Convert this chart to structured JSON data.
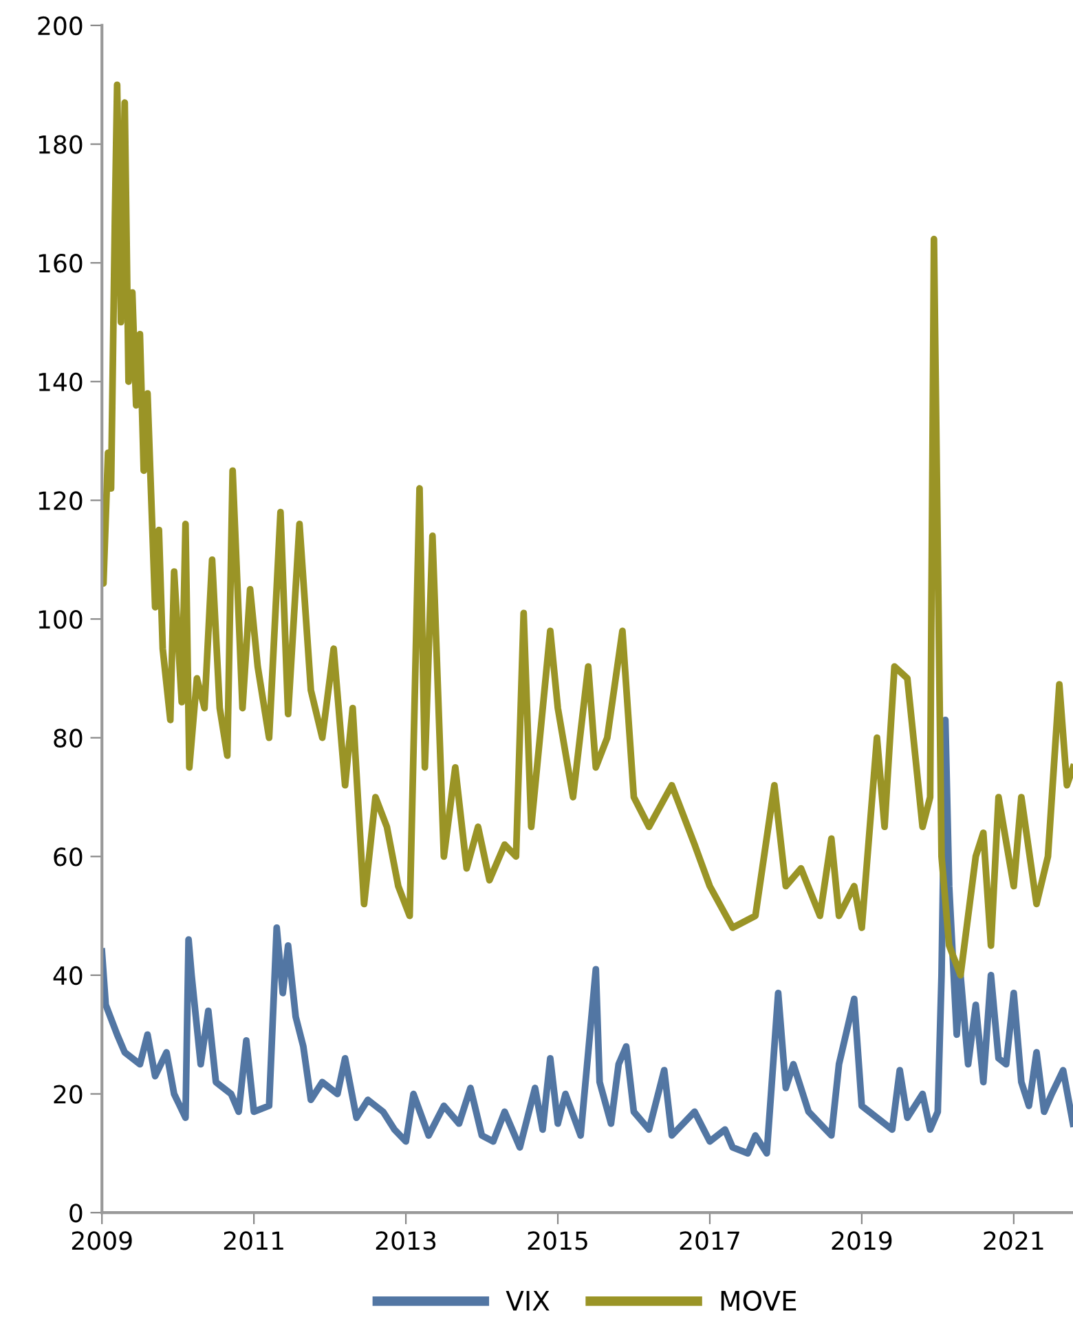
{
  "chart_data": {
    "type": "line",
    "xlim": [
      2009,
      2021.78
    ],
    "xticks": [
      2009,
      2011,
      2013,
      2015,
      2017,
      2019,
      2021
    ],
    "ylim": [
      0,
      200
    ],
    "yticks": [
      0,
      20,
      40,
      60,
      80,
      100,
      120,
      140,
      160,
      180,
      200
    ],
    "grid": false,
    "legend": "bottom",
    "marker": "none",
    "line_style": "solid",
    "series": [
      {
        "name": "VIX",
        "color": "#5276a3",
        "x": [
          2009.0,
          2009.05,
          2009.2,
          2009.3,
          2009.5,
          2009.6,
          2009.7,
          2009.85,
          2009.95,
          2010.1,
          2010.14,
          2010.18,
          2010.3,
          2010.4,
          2010.5,
          2010.7,
          2010.8,
          2010.9,
          2011.0,
          2011.2,
          2011.3,
          2011.38,
          2011.45,
          2011.55,
          2011.65,
          2011.75,
          2011.9,
          2012.1,
          2012.2,
          2012.35,
          2012.5,
          2012.7,
          2012.85,
          2013.0,
          2013.1,
          2013.3,
          2013.5,
          2013.7,
          2013.85,
          2014.0,
          2014.15,
          2014.3,
          2014.5,
          2014.7,
          2014.8,
          2014.9,
          2015.0,
          2015.1,
          2015.3,
          2015.5,
          2015.55,
          2015.7,
          2015.8,
          2015.9,
          2016.0,
          2016.2,
          2016.4,
          2016.5,
          2016.8,
          2017.0,
          2017.2,
          2017.3,
          2017.5,
          2017.6,
          2017.75,
          2017.9,
          2018.0,
          2018.1,
          2018.3,
          2018.6,
          2018.7,
          2018.9,
          2019.0,
          2019.2,
          2019.4,
          2019.5,
          2019.6,
          2019.8,
          2019.9,
          2020.0,
          2020.05,
          2020.1,
          2020.15,
          2020.25,
          2020.3,
          2020.4,
          2020.5,
          2020.6,
          2020.7,
          2020.8,
          2020.9,
          2021.0,
          2021.1,
          2021.2,
          2021.3,
          2021.4,
          2021.5,
          2021.65,
          2021.78
        ],
        "values": [
          44,
          35,
          30,
          27,
          25,
          30,
          23,
          27,
          20,
          16,
          46,
          40,
          25,
          34,
          22,
          20,
          17,
          29,
          17,
          18,
          48,
          37,
          45,
          33,
          28,
          19,
          22,
          20,
          26,
          16,
          19,
          17,
          14,
          12,
          20,
          13,
          18,
          15,
          21,
          13,
          12,
          17,
          11,
          21,
          14,
          26,
          15,
          20,
          13,
          41,
          22,
          15,
          25,
          28,
          17,
          14,
          24,
          13,
          17,
          12,
          14,
          11,
          10,
          13,
          10,
          37,
          21,
          25,
          17,
          13,
          25,
          36,
          18,
          16,
          14,
          24,
          16,
          20,
          14,
          17,
          40,
          83,
          55,
          30,
          40,
          25,
          35,
          22,
          40,
          26,
          25,
          37,
          22,
          18,
          27,
          17,
          20,
          24,
          15
        ]
      },
      {
        "name": "MOVE",
        "color": "#9a9426",
        "x": [
          2009.0,
          2009.02,
          2009.08,
          2009.12,
          2009.17,
          2009.2,
          2009.25,
          2009.3,
          2009.35,
          2009.4,
          2009.45,
          2009.5,
          2009.55,
          2009.6,
          2009.7,
          2009.75,
          2009.8,
          2009.9,
          2009.95,
          2010.05,
          2010.1,
          2010.15,
          2010.25,
          2010.35,
          2010.45,
          2010.55,
          2010.65,
          2010.72,
          2010.85,
          2010.95,
          2011.05,
          2011.2,
          2011.35,
          2011.45,
          2011.6,
          2011.75,
          2011.9,
          2012.05,
          2012.2,
          2012.3,
          2012.45,
          2012.6,
          2012.75,
          2012.9,
          2013.05,
          2013.18,
          2013.25,
          2013.35,
          2013.5,
          2013.65,
          2013.8,
          2013.95,
          2014.1,
          2014.3,
          2014.45,
          2014.55,
          2014.65,
          2014.9,
          2015.0,
          2015.2,
          2015.4,
          2015.5,
          2015.65,
          2015.85,
          2016.0,
          2016.2,
          2016.5,
          2016.8,
          2017.0,
          2017.3,
          2017.6,
          2017.85,
          2018.0,
          2018.2,
          2018.45,
          2018.6,
          2018.7,
          2018.9,
          2019.0,
          2019.2,
          2019.3,
          2019.43,
          2019.6,
          2019.8,
          2019.9,
          2019.95,
          2020.05,
          2020.15,
          2020.3,
          2020.5,
          2020.6,
          2020.7,
          2020.8,
          2021.0,
          2021.1,
          2021.3,
          2021.45,
          2021.6,
          2021.7,
          2021.78
        ],
        "values": [
          120,
          106,
          128,
          122,
          167,
          190,
          150,
          187,
          140,
          155,
          136,
          148,
          125,
          138,
          102,
          115,
          95,
          83,
          108,
          86,
          116,
          75,
          90,
          85,
          110,
          85,
          77,
          125,
          85,
          105,
          92,
          80,
          118,
          84,
          116,
          88,
          80,
          95,
          72,
          85,
          52,
          70,
          65,
          55,
          50,
          122,
          75,
          114,
          60,
          75,
          58,
          65,
          56,
          62,
          60,
          101,
          65,
          98,
          85,
          70,
          92,
          75,
          80,
          98,
          70,
          65,
          72,
          62,
          55,
          48,
          50,
          72,
          55,
          58,
          50,
          63,
          50,
          55,
          48,
          80,
          65,
          92,
          90,
          65,
          70,
          164,
          60,
          45,
          40,
          60,
          64,
          45,
          70,
          55,
          70,
          52,
          60,
          89,
          72,
          75
        ]
      }
    ]
  }
}
